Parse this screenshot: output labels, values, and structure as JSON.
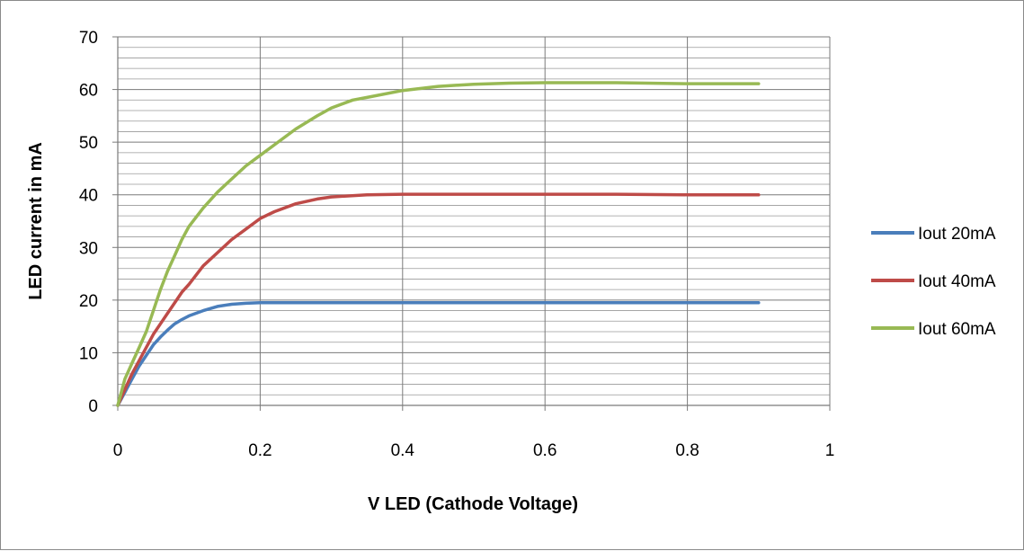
{
  "chart_data": {
    "type": "line",
    "title": "",
    "xlabel": "V LED (Cathode Voltage)",
    "ylabel": "LED current in mA",
    "xlim": [
      0,
      1
    ],
    "ylim": [
      0,
      70
    ],
    "x_ticks": [
      "0",
      "0.2",
      "0.4",
      "0.6",
      "0.8",
      "1"
    ],
    "y_ticks": [
      "0",
      "10",
      "20",
      "30",
      "40",
      "50",
      "60",
      "70"
    ],
    "grid": true,
    "legend_position": "right",
    "series": [
      {
        "name": "Iout 20mA",
        "color": "#4a7ebb",
        "x": [
          0,
          0.01,
          0.02,
          0.03,
          0.04,
          0.05,
          0.06,
          0.07,
          0.08,
          0.09,
          0.1,
          0.11,
          0.12,
          0.14,
          0.16,
          0.18,
          0.2,
          0.25,
          0.3,
          0.4,
          0.5,
          0.6,
          0.7,
          0.8,
          0.9
        ],
        "values": [
          0,
          2.5,
          5,
          7.5,
          9.5,
          11.5,
          13,
          14.3,
          15.5,
          16.3,
          17,
          17.5,
          18,
          18.8,
          19.2,
          19.4,
          19.5,
          19.5,
          19.5,
          19.5,
          19.5,
          19.5,
          19.5,
          19.5,
          19.5
        ]
      },
      {
        "name": "Iout 40mA",
        "color": "#be4b48",
        "x": [
          0,
          0.01,
          0.02,
          0.03,
          0.04,
          0.05,
          0.06,
          0.07,
          0.08,
          0.09,
          0.1,
          0.12,
          0.14,
          0.16,
          0.18,
          0.2,
          0.22,
          0.25,
          0.28,
          0.3,
          0.35,
          0.4,
          0.5,
          0.6,
          0.7,
          0.8,
          0.9
        ],
        "values": [
          0,
          3,
          6,
          8.5,
          11,
          13.5,
          15.5,
          17.5,
          19.5,
          21.5,
          23,
          26.5,
          29,
          31.5,
          33.5,
          35.5,
          36.8,
          38.3,
          39.2,
          39.6,
          40,
          40.1,
          40.1,
          40.1,
          40.1,
          40,
          40
        ]
      },
      {
        "name": "Iout 60mA",
        "color": "#98b954",
        "x": [
          0,
          0.01,
          0.02,
          0.03,
          0.04,
          0.05,
          0.06,
          0.07,
          0.08,
          0.09,
          0.1,
          0.12,
          0.14,
          0.16,
          0.18,
          0.2,
          0.22,
          0.25,
          0.28,
          0.3,
          0.33,
          0.35,
          0.4,
          0.45,
          0.5,
          0.55,
          0.6,
          0.7,
          0.8,
          0.9
        ],
        "values": [
          0,
          5,
          8,
          11,
          14,
          18,
          22,
          25.5,
          28.5,
          31.5,
          34,
          37.5,
          40.5,
          43,
          45.5,
          47.5,
          49.5,
          52.5,
          55,
          56.5,
          58,
          58.5,
          59.8,
          60.6,
          61,
          61.2,
          61.3,
          61.3,
          61.1,
          61.1
        ]
      }
    ]
  }
}
